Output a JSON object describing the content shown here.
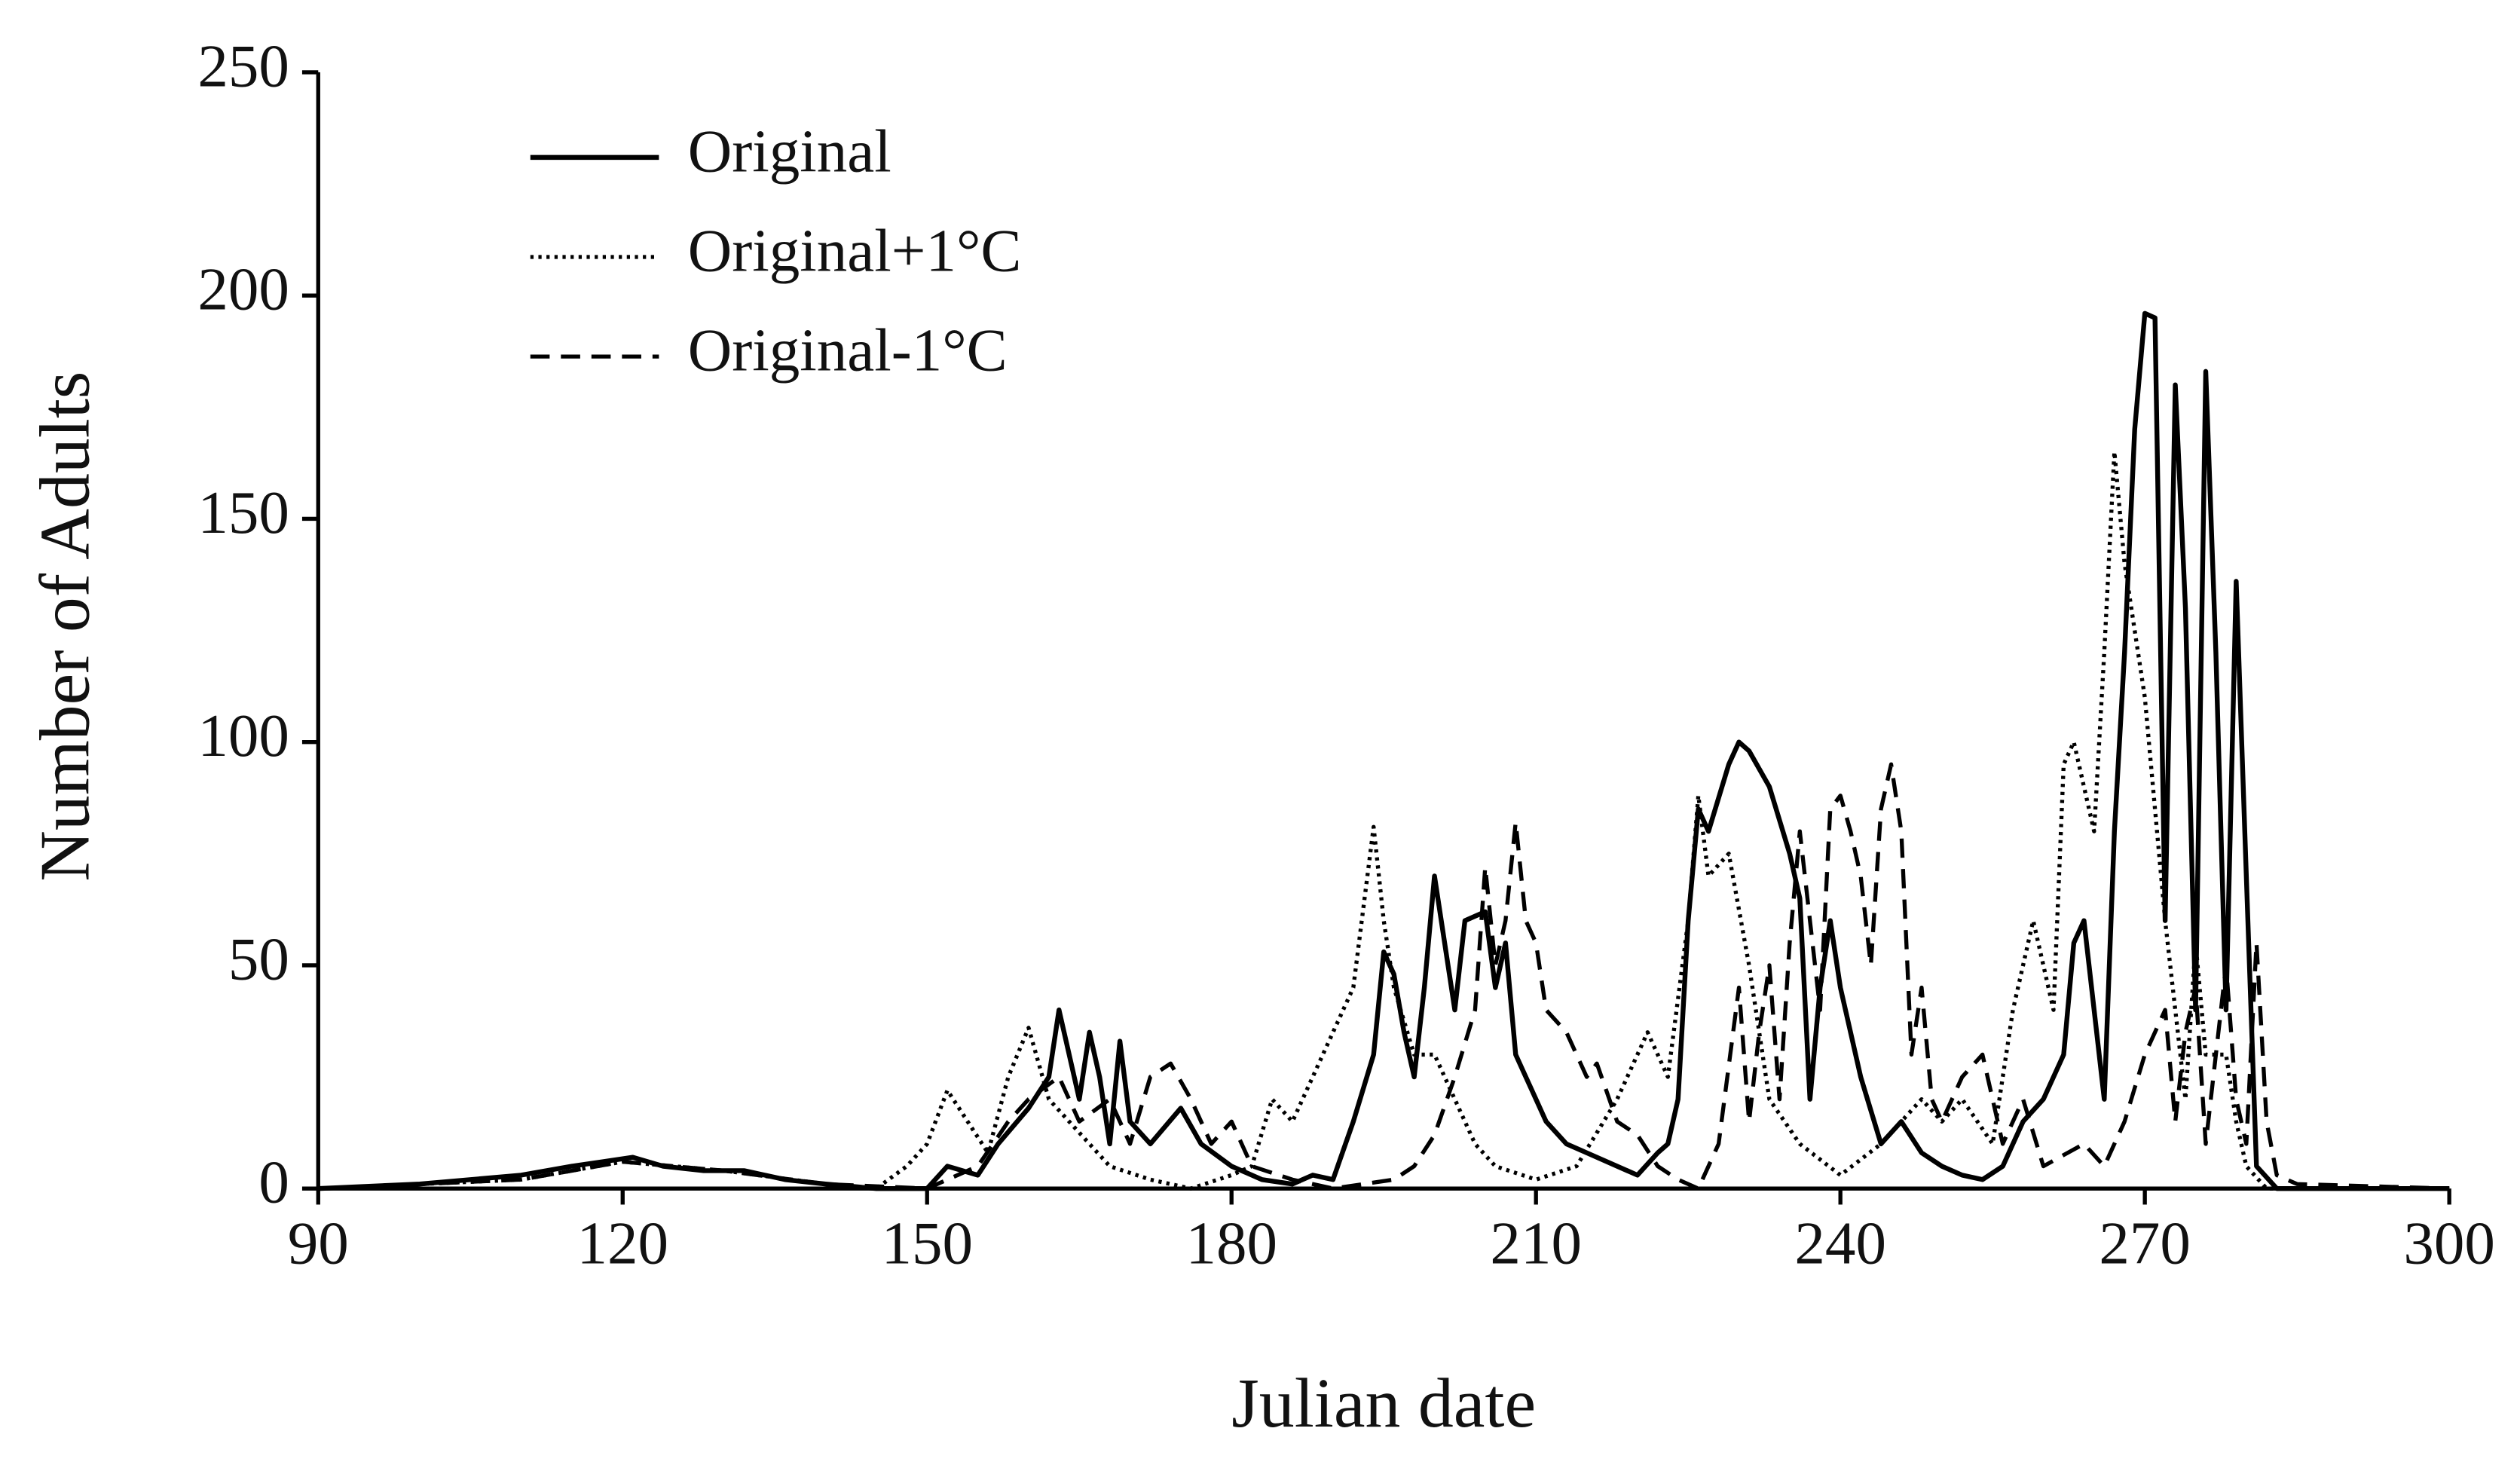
{
  "chart_data": {
    "type": "line",
    "xlabel": "Julian date",
    "ylabel": "Number of Adults",
    "xlim": [
      90,
      300
    ],
    "ylim": [
      0,
      250
    ],
    "xticks": [
      90,
      120,
      150,
      180,
      210,
      240,
      270,
      300
    ],
    "yticks": [
      0,
      50,
      100,
      150,
      200,
      250
    ],
    "grid": false,
    "legend": "upper left",
    "series": [
      {
        "name": "Original",
        "color": "#000000",
        "style": "solid",
        "x": [
          90,
          100,
          110,
          115,
          118,
          121,
          124,
          128,
          132,
          136,
          140,
          145,
          150,
          152,
          155,
          157,
          160,
          162,
          163,
          164,
          165,
          166,
          167,
          168,
          169,
          170,
          172,
          175,
          177,
          180,
          183,
          186,
          188,
          190,
          192,
          194,
          195,
          196,
          197,
          198,
          199,
          200,
          201,
          202,
          203,
          205,
          206,
          207,
          208,
          209,
          211,
          213,
          215,
          218,
          220,
          222,
          223,
          224,
          225,
          226,
          227,
          229,
          230,
          231,
          233,
          235,
          236,
          237,
          238,
          239,
          240,
          242,
          244,
          246,
          248,
          250,
          252,
          254,
          256,
          258,
          260,
          262,
          263,
          264,
          265,
          266,
          267,
          268,
          269,
          270,
          271,
          272,
          273,
          274,
          275,
          276,
          277,
          278,
          279,
          280,
          281,
          283,
          300
        ],
        "values": [
          0,
          1,
          3,
          5,
          6,
          7,
          5,
          4,
          4,
          2,
          1,
          0,
          0,
          5,
          3,
          10,
          18,
          25,
          40,
          30,
          20,
          35,
          25,
          10,
          33,
          15,
          10,
          18,
          10,
          5,
          2,
          1,
          3,
          2,
          15,
          30,
          53,
          48,
          35,
          25,
          45,
          70,
          55,
          40,
          60,
          62,
          45,
          55,
          30,
          25,
          15,
          10,
          8,
          5,
          3,
          8,
          10,
          20,
          60,
          85,
          80,
          95,
          100,
          98,
          90,
          75,
          65,
          20,
          45,
          60,
          45,
          25,
          10,
          15,
          8,
          5,
          3,
          2,
          5,
          15,
          20,
          30,
          55,
          60,
          40,
          20,
          80,
          120,
          170,
          196,
          195,
          60,
          180,
          130,
          40,
          183,
          120,
          40,
          136,
          70,
          5,
          0,
          0
        ]
      },
      {
        "name": "Original+1°C",
        "color": "#000000",
        "style": "dotted",
        "x": [
          90,
          110,
          120,
          130,
          140,
          145,
          148,
          150,
          152,
          154,
          156,
          158,
          160,
          162,
          164,
          166,
          168,
          172,
          176,
          180,
          182,
          184,
          186,
          188,
          190,
          192,
          194,
          195,
          196,
          198,
          200,
          202,
          204,
          206,
          210,
          214,
          218,
          221,
          223,
          225,
          226,
          227,
          229,
          231,
          233,
          236,
          240,
          244,
          248,
          250,
          252,
          255,
          257,
          259,
          261,
          262,
          263,
          265,
          266,
          267,
          268,
          270,
          272,
          274,
          275,
          276,
          278,
          279,
          280,
          282,
          300
        ],
        "values": [
          0,
          2,
          6,
          4,
          1,
          0,
          5,
          10,
          22,
          15,
          8,
          25,
          36,
          20,
          15,
          10,
          5,
          2,
          0,
          3,
          5,
          20,
          15,
          25,
          35,
          45,
          81,
          60,
          45,
          30,
          30,
          20,
          10,
          5,
          2,
          5,
          20,
          35,
          25,
          60,
          88,
          70,
          75,
          50,
          20,
          10,
          3,
          10,
          20,
          15,
          20,
          10,
          40,
          60,
          40,
          95,
          100,
          80,
          120,
          165,
          140,
          110,
          60,
          20,
          55,
          30,
          30,
          15,
          5,
          0,
          0
        ]
      },
      {
        "name": "Original-1°C",
        "color": "#000000",
        "style": "dashed",
        "x": [
          90,
          110,
          120,
          130,
          140,
          150,
          155,
          158,
          160,
          163,
          165,
          168,
          170,
          172,
          174,
          176,
          178,
          180,
          182,
          186,
          190,
          196,
          198,
          200,
          202,
          204,
          205,
          206,
          207,
          208,
          209,
          210,
          211,
          213,
          215,
          216,
          218,
          220,
          222,
          224,
          226,
          228,
          230,
          231,
          232,
          233,
          234,
          235,
          236,
          237,
          238,
          239,
          240,
          241,
          242,
          243,
          244,
          245,
          246,
          247,
          248,
          249,
          250,
          252,
          254,
          256,
          258,
          260,
          264,
          266,
          268,
          270,
          272,
          273,
          274,
          275,
          276,
          277,
          278,
          279,
          280,
          281,
          282,
          283,
          285,
          300
        ],
        "values": [
          0,
          2,
          6,
          4,
          1,
          0,
          5,
          15,
          20,
          25,
          15,
          20,
          10,
          25,
          28,
          20,
          10,
          15,
          5,
          2,
          0,
          2,
          5,
          12,
          25,
          40,
          72,
          50,
          60,
          82,
          60,
          55,
          40,
          35,
          25,
          28,
          15,
          12,
          5,
          2,
          0,
          10,
          45,
          15,
          35,
          50,
          20,
          55,
          80,
          60,
          40,
          85,
          88,
          80,
          70,
          50,
          85,
          95,
          80,
          30,
          45,
          20,
          15,
          25,
          30,
          10,
          20,
          5,
          10,
          5,
          15,
          30,
          40,
          15,
          35,
          45,
          10,
          30,
          50,
          20,
          10,
          55,
          15,
          3,
          1,
          0
        ]
      }
    ]
  }
}
